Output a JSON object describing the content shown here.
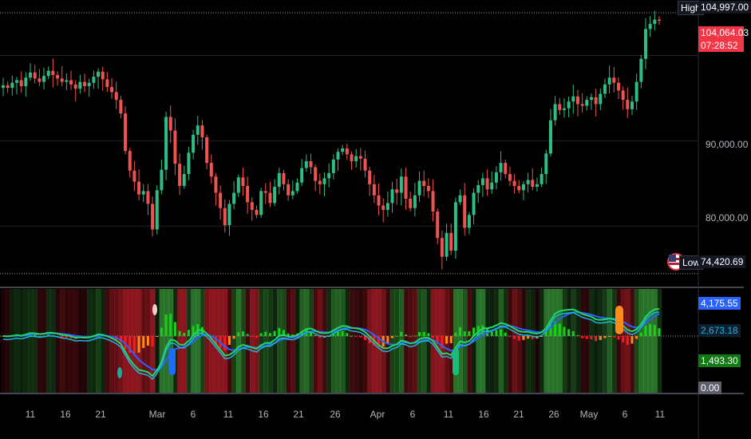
{
  "chart_data": [
    {
      "type": "candlestick",
      "title": "",
      "price_axis": {
        "min": 73000,
        "max": 106500,
        "ticks": [
          "90,000.00",
          "80,000.00"
        ]
      },
      "x_ticks": [
        "11",
        "16",
        "21",
        "Mar",
        "6",
        "11",
        "16",
        "21",
        "26",
        "Apr",
        "6",
        "11",
        "16",
        "21",
        "26",
        "May",
        "6",
        "11"
      ],
      "high": {
        "label": "High",
        "value": "104,997.00",
        "numeric": 104997
      },
      "low": {
        "label": "Low",
        "value": "74,420.69",
        "numeric": 74420.69
      },
      "last_price": {
        "value": "104,064.03",
        "countdown": "07:28:52",
        "numeric": 104064.03
      },
      "closes": [
        96500,
        96200,
        96800,
        97100,
        96400,
        97400,
        98000,
        97300,
        96900,
        97600,
        98200,
        97700,
        97300,
        96900,
        97100,
        96600,
        96100,
        96900,
        96400,
        96800,
        97500,
        98100,
        97200,
        96300,
        95700,
        94800,
        93200,
        88800,
        86500,
        85200,
        83700,
        84100,
        82600,
        79600,
        84200,
        86600,
        92800,
        91200,
        87300,
        84700,
        86100,
        88600,
        90700,
        91800,
        90400,
        87400,
        85800,
        83900,
        82100,
        80100,
        82600,
        83900,
        85700,
        84700,
        82800,
        81900,
        81300,
        84100,
        83900,
        82700,
        84600,
        86200,
        84900,
        83600,
        84100,
        85100,
        86800,
        87600,
        86900,
        85300,
        84900,
        85600,
        86200,
        87800,
        88700,
        89100,
        88400,
        87600,
        88200,
        87900,
        86500,
        84900,
        83600,
        82400,
        81900,
        82700,
        84300,
        83900,
        85800,
        83200,
        82100,
        83600,
        85300,
        84700,
        84100,
        81700,
        78600,
        76400,
        79200,
        77100,
        82800,
        83600,
        79800,
        81300,
        83900,
        84800,
        85600,
        84300,
        85100,
        86300,
        87400,
        86100,
        85300,
        84700,
        84200,
        84900,
        85400,
        84600,
        84900,
        86100,
        88500,
        92400,
        94300,
        93600,
        93800,
        94600,
        95200,
        94300,
        94100,
        94800,
        95100,
        94300,
        95500,
        96600,
        97400,
        96800,
        95900,
        94800,
        93700,
        94600,
        96900,
        99600,
        103100,
        103700,
        104200,
        104064
      ],
      "indicator": {
        "levels": [
          "4,175.55",
          "2,673.18",
          "1,493.30",
          "0.00"
        ],
        "values": {
          "fast": 4175.55,
          "signal": 2673.18,
          "hist": 1493.3,
          "zero": 0
        }
      }
    }
  ],
  "colors": {
    "up": "#26a69a",
    "up_body": "#2ebd85",
    "down": "#ef5350",
    "high_label_bg": "#131722",
    "last_price_bg": "#f23645",
    "low_label_bg": "#131722",
    "fast_line": "#1cb5e0",
    "signal_line": "#22d66b",
    "mid_line": "#2962ff",
    "hist_up": "#18d118",
    "hist_down": "#ff1a1a",
    "hist_orange": "#ff8c1a",
    "level1_bg": "#2962ff",
    "level2_bg": "#0b1f2e",
    "level3_bg": "#0f7a0f",
    "level4_bg": "#5d606b"
  },
  "icons": [
    "us-flag-icon",
    "event-icon"
  ]
}
